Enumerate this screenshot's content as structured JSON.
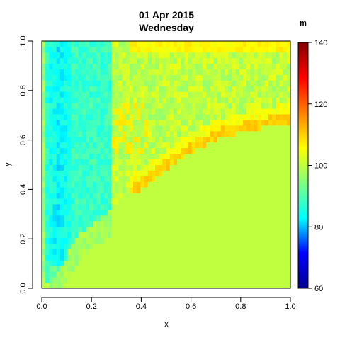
{
  "chart_data": {
    "type": "heatmap",
    "title": "01 Apr 2015",
    "subtitle": "Wednesday",
    "xlabel": "x",
    "ylabel": "y",
    "xlim": [
      0,
      1
    ],
    "ylim": [
      0,
      1
    ],
    "x_ticks": [
      "0.0",
      "0.2",
      "0.4",
      "0.6",
      "0.8",
      "1.0"
    ],
    "y_ticks": [
      "0.0",
      "0.2",
      "0.4",
      "0.6",
      "0.8",
      "1.0"
    ],
    "colorbar": {
      "label": "m",
      "min": 60,
      "max": 140,
      "ticks": [
        "60",
        "80",
        "100",
        "120",
        "140"
      ],
      "palette": [
        "#00008F",
        "#0000FF",
        "#00FFFF",
        "#80FF80",
        "#FFFF00",
        "#FF8000",
        "#FF0000",
        "#800000"
      ]
    },
    "grid": false,
    "legend": "colorbar-right",
    "background_value": 100,
    "description": [
      "Left strip (x 0.0-0.28): low values around 80-92 (blue/cyan), lowest near x~0.05-0.1.",
      "Upper region above a curved boundary: mixture of 96-104 values (cyan/green).",
      "Band along boundary curve from (0.38,0.39) to (1.0,0.66): high values ~108-112 (yellow).",
      "Lower-right region below the boundary: uniform value 100 (green).",
      "Top row near y=1.0 from x~0.4-1.0: slightly elevated ~104-108."
    ]
  }
}
